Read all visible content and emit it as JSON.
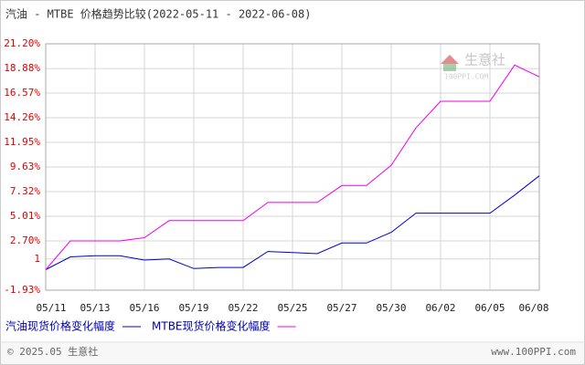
{
  "chart_data": {
    "type": "line",
    "title": "汽油 - MTBE 价格趋势比较(2022-05-11 - 2022-06-08)",
    "categories": [
      "05/11",
      null,
      "05/13",
      null,
      "05/16",
      null,
      "05/19",
      null,
      "05/22",
      null,
      "05/25",
      null,
      "05/27",
      null,
      "05/30",
      null,
      "06/02",
      null,
      "06/05",
      null,
      "06/08"
    ],
    "series": [
      {
        "name": "汽油现货价格变化幅度",
        "color": "#0000cc",
        "values": [
          0.0,
          1.2,
          1.3,
          1.3,
          0.9,
          1.0,
          0.1,
          0.2,
          0.2,
          1.7,
          1.6,
          1.5,
          2.5,
          2.5,
          3.5,
          5.3,
          5.3,
          5.3,
          5.3,
          7.0,
          8.8
        ]
      },
      {
        "name": "MTBE现货价格变化幅度",
        "color": "#ee00ee",
        "values": [
          0.0,
          2.7,
          2.7,
          2.7,
          3.0,
          4.6,
          4.6,
          4.6,
          4.6,
          6.3,
          6.3,
          6.3,
          7.9,
          7.9,
          9.8,
          13.3,
          15.8,
          15.8,
          15.8,
          19.2,
          18.1
        ]
      }
    ],
    "ylim": [
      -1.93,
      21.2
    ],
    "yticks": [
      {
        "value": -1.93,
        "label": "-1.93%"
      },
      1,
      {
        "value": 2.7,
        "label": "2.70%"
      },
      {
        "value": 5.01,
        "label": "5.01%"
      },
      {
        "value": 7.32,
        "label": "7.32%"
      },
      {
        "value": 9.63,
        "label": "9.63%"
      },
      {
        "value": 11.95,
        "label": "11.95%"
      },
      {
        "value": 14.26,
        "label": "14.26%"
      },
      {
        "value": 16.57,
        "label": "16.57%"
      },
      {
        "value": 18.88,
        "label": "18.88%"
      },
      {
        "value": 21.2,
        "label": "21.20%"
      }
    ],
    "grid": true,
    "watermark": "生意社",
    "watermark_url": "100PPI.COM",
    "footer_left": "© 2025.05 生意社",
    "footer_right": "www.100PPI.com"
  }
}
